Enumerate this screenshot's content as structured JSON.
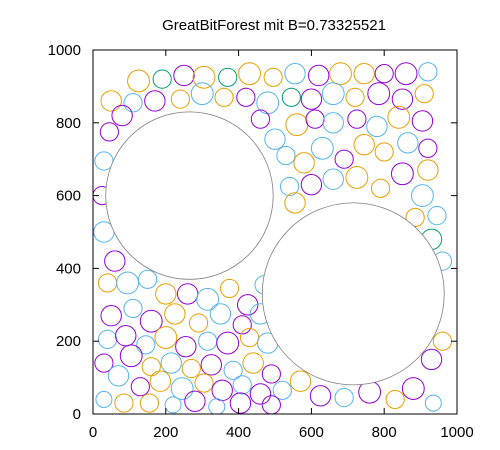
{
  "chart_data": {
    "type": "scatter",
    "title": "GreatBitForest mit B=0.73325521",
    "xlabel": "",
    "ylabel": "",
    "xlim": [
      0,
      1000
    ],
    "ylim": [
      0,
      1000
    ],
    "x_ticks": [
      "0",
      "200",
      "400",
      "600",
      "800",
      "1000"
    ],
    "y_ticks": [
      "0",
      "200",
      "400",
      "600",
      "800",
      "1000"
    ],
    "grid": false,
    "legend": "none",
    "marker": "circle",
    "colors": {
      "purple": "#9400d3",
      "teal": "#009e73",
      "sky": "#56b4e9",
      "orange": "#e69f00",
      "black": "#000000",
      "large_circle": "#808080"
    },
    "large_circles": [
      {
        "x": 265,
        "y": 600,
        "r": 230
      },
      {
        "x": 715,
        "y": 330,
        "r": 250
      }
    ],
    "circles": [
      {
        "x": 125,
        "y": 915,
        "r": 30,
        "color": "orange"
      },
      {
        "x": 190,
        "y": 920,
        "r": 25,
        "color": "teal"
      },
      {
        "x": 250,
        "y": 930,
        "r": 28,
        "color": "purple"
      },
      {
        "x": 305,
        "y": 925,
        "r": 30,
        "color": "orange"
      },
      {
        "x": 370,
        "y": 925,
        "r": 25,
        "color": "teal"
      },
      {
        "x": 430,
        "y": 935,
        "r": 30,
        "color": "orange"
      },
      {
        "x": 495,
        "y": 925,
        "r": 25,
        "color": "orange"
      },
      {
        "x": 555,
        "y": 935,
        "r": 28,
        "color": "sky"
      },
      {
        "x": 620,
        "y": 930,
        "r": 28,
        "color": "purple"
      },
      {
        "x": 680,
        "y": 935,
        "r": 30,
        "color": "orange"
      },
      {
        "x": 745,
        "y": 935,
        "r": 28,
        "color": "orange"
      },
      {
        "x": 800,
        "y": 935,
        "r": 25,
        "color": "purple"
      },
      {
        "x": 860,
        "y": 935,
        "r": 30,
        "color": "purple"
      },
      {
        "x": 920,
        "y": 940,
        "r": 25,
        "color": "sky"
      },
      {
        "x": 50,
        "y": 860,
        "r": 28,
        "color": "orange"
      },
      {
        "x": 110,
        "y": 855,
        "r": 25,
        "color": "sky"
      },
      {
        "x": 170,
        "y": 860,
        "r": 28,
        "color": "purple"
      },
      {
        "x": 240,
        "y": 865,
        "r": 25,
        "color": "orange"
      },
      {
        "x": 300,
        "y": 880,
        "r": 30,
        "color": "sky"
      },
      {
        "x": 360,
        "y": 870,
        "r": 25,
        "color": "orange"
      },
      {
        "x": 420,
        "y": 870,
        "r": 25,
        "color": "purple"
      },
      {
        "x": 480,
        "y": 855,
        "r": 30,
        "color": "sky"
      },
      {
        "x": 545,
        "y": 870,
        "r": 25,
        "color": "teal"
      },
      {
        "x": 600,
        "y": 865,
        "r": 28,
        "color": "purple"
      },
      {
        "x": 660,
        "y": 880,
        "r": 30,
        "color": "sky"
      },
      {
        "x": 720,
        "y": 870,
        "r": 25,
        "color": "orange"
      },
      {
        "x": 785,
        "y": 880,
        "r": 30,
        "color": "purple"
      },
      {
        "x": 850,
        "y": 865,
        "r": 28,
        "color": "purple"
      },
      {
        "x": 910,
        "y": 880,
        "r": 25,
        "color": "orange"
      },
      {
        "x": 45,
        "y": 775,
        "r": 25,
        "color": "purple"
      },
      {
        "x": 80,
        "y": 820,
        "r": 28,
        "color": "purple"
      },
      {
        "x": 460,
        "y": 810,
        "r": 25,
        "color": "purple"
      },
      {
        "x": 500,
        "y": 755,
        "r": 28,
        "color": "sky"
      },
      {
        "x": 560,
        "y": 795,
        "r": 30,
        "color": "orange"
      },
      {
        "x": 610,
        "y": 810,
        "r": 25,
        "color": "purple"
      },
      {
        "x": 660,
        "y": 800,
        "r": 28,
        "color": "sky"
      },
      {
        "x": 725,
        "y": 810,
        "r": 25,
        "color": "purple"
      },
      {
        "x": 780,
        "y": 790,
        "r": 28,
        "color": "sky"
      },
      {
        "x": 840,
        "y": 815,
        "r": 30,
        "color": "orange"
      },
      {
        "x": 905,
        "y": 805,
        "r": 28,
        "color": "purple"
      },
      {
        "x": 530,
        "y": 710,
        "r": 25,
        "color": "sky"
      },
      {
        "x": 580,
        "y": 690,
        "r": 28,
        "color": "orange"
      },
      {
        "x": 630,
        "y": 730,
        "r": 30,
        "color": "sky"
      },
      {
        "x": 690,
        "y": 700,
        "r": 25,
        "color": "purple"
      },
      {
        "x": 745,
        "y": 740,
        "r": 28,
        "color": "orange"
      },
      {
        "x": 800,
        "y": 720,
        "r": 25,
        "color": "orange"
      },
      {
        "x": 865,
        "y": 745,
        "r": 28,
        "color": "sky"
      },
      {
        "x": 920,
        "y": 730,
        "r": 25,
        "color": "purple"
      },
      {
        "x": 540,
        "y": 625,
        "r": 25,
        "color": "sky"
      },
      {
        "x": 600,
        "y": 630,
        "r": 28,
        "color": "purple"
      },
      {
        "x": 660,
        "y": 645,
        "r": 28,
        "color": "sky"
      },
      {
        "x": 725,
        "y": 650,
        "r": 30,
        "color": "orange"
      },
      {
        "x": 790,
        "y": 620,
        "r": 25,
        "color": "orange"
      },
      {
        "x": 850,
        "y": 660,
        "r": 30,
        "color": "purple"
      },
      {
        "x": 920,
        "y": 670,
        "r": 28,
        "color": "orange"
      },
      {
        "x": 555,
        "y": 580,
        "r": 28,
        "color": "orange"
      },
      {
        "x": 905,
        "y": 600,
        "r": 30,
        "color": "sky"
      },
      {
        "x": 945,
        "y": 545,
        "r": 25,
        "color": "sky"
      },
      {
        "x": 885,
        "y": 540,
        "r": 25,
        "color": "orange"
      },
      {
        "x": 930,
        "y": 480,
        "r": 28,
        "color": "teal"
      },
      {
        "x": 30,
        "y": 695,
        "r": 25,
        "color": "sky"
      },
      {
        "x": 25,
        "y": 600,
        "r": 25,
        "color": "purple"
      },
      {
        "x": 30,
        "y": 500,
        "r": 28,
        "color": "sky"
      },
      {
        "x": 60,
        "y": 420,
        "r": 28,
        "color": "purple"
      },
      {
        "x": 40,
        "y": 360,
        "r": 25,
        "color": "orange"
      },
      {
        "x": 95,
        "y": 360,
        "r": 30,
        "color": "sky"
      },
      {
        "x": 150,
        "y": 370,
        "r": 25,
        "color": "sky"
      },
      {
        "x": 200,
        "y": 330,
        "r": 28,
        "color": "orange"
      },
      {
        "x": 260,
        "y": 330,
        "r": 28,
        "color": "purple"
      },
      {
        "x": 315,
        "y": 315,
        "r": 30,
        "color": "sky"
      },
      {
        "x": 375,
        "y": 345,
        "r": 25,
        "color": "orange"
      },
      {
        "x": 425,
        "y": 300,
        "r": 28,
        "color": "purple"
      },
      {
        "x": 470,
        "y": 355,
        "r": 25,
        "color": "sky"
      },
      {
        "x": 50,
        "y": 270,
        "r": 28,
        "color": "purple"
      },
      {
        "x": 110,
        "y": 290,
        "r": 25,
        "color": "sky"
      },
      {
        "x": 160,
        "y": 255,
        "r": 30,
        "color": "purple"
      },
      {
        "x": 225,
        "y": 275,
        "r": 28,
        "color": "orange"
      },
      {
        "x": 290,
        "y": 250,
        "r": 25,
        "color": "orange"
      },
      {
        "x": 350,
        "y": 275,
        "r": 28,
        "color": "sky"
      },
      {
        "x": 410,
        "y": 245,
        "r": 25,
        "color": "purple"
      },
      {
        "x": 460,
        "y": 275,
        "r": 28,
        "color": "sky"
      },
      {
        "x": 40,
        "y": 205,
        "r": 25,
        "color": "sky"
      },
      {
        "x": 90,
        "y": 215,
        "r": 28,
        "color": "purple"
      },
      {
        "x": 145,
        "y": 190,
        "r": 25,
        "color": "sky"
      },
      {
        "x": 200,
        "y": 210,
        "r": 30,
        "color": "orange"
      },
      {
        "x": 255,
        "y": 185,
        "r": 28,
        "color": "purple"
      },
      {
        "x": 315,
        "y": 200,
        "r": 25,
        "color": "sky"
      },
      {
        "x": 370,
        "y": 195,
        "r": 30,
        "color": "purple"
      },
      {
        "x": 430,
        "y": 210,
        "r": 25,
        "color": "orange"
      },
      {
        "x": 480,
        "y": 195,
        "r": 28,
        "color": "sky"
      },
      {
        "x": 30,
        "y": 140,
        "r": 25,
        "color": "purple"
      },
      {
        "x": 105,
        "y": 160,
        "r": 30,
        "color": "purple"
      },
      {
        "x": 160,
        "y": 130,
        "r": 25,
        "color": "orange"
      },
      {
        "x": 215,
        "y": 140,
        "r": 28,
        "color": "sky"
      },
      {
        "x": 270,
        "y": 125,
        "r": 25,
        "color": "orange"
      },
      {
        "x": 325,
        "y": 135,
        "r": 28,
        "color": "purple"
      },
      {
        "x": 385,
        "y": 120,
        "r": 25,
        "color": "sky"
      },
      {
        "x": 440,
        "y": 140,
        "r": 28,
        "color": "orange"
      },
      {
        "x": 490,
        "y": 110,
        "r": 25,
        "color": "purple"
      },
      {
        "x": 70,
        "y": 105,
        "r": 28,
        "color": "sky"
      },
      {
        "x": 130,
        "y": 75,
        "r": 25,
        "color": "purple"
      },
      {
        "x": 185,
        "y": 90,
        "r": 28,
        "color": "orange"
      },
      {
        "x": 245,
        "y": 70,
        "r": 30,
        "color": "sky"
      },
      {
        "x": 305,
        "y": 85,
        "r": 25,
        "color": "orange"
      },
      {
        "x": 355,
        "y": 65,
        "r": 28,
        "color": "purple"
      },
      {
        "x": 410,
        "y": 80,
        "r": 25,
        "color": "sky"
      },
      {
        "x": 460,
        "y": 55,
        "r": 28,
        "color": "purple"
      },
      {
        "x": 520,
        "y": 65,
        "r": 25,
        "color": "sky"
      },
      {
        "x": 570,
        "y": 90,
        "r": 28,
        "color": "orange"
      },
      {
        "x": 30,
        "y": 40,
        "r": 22,
        "color": "sky"
      },
      {
        "x": 85,
        "y": 30,
        "r": 25,
        "color": "orange"
      },
      {
        "x": 155,
        "y": 30,
        "r": 25,
        "color": "orange"
      },
      {
        "x": 220,
        "y": 25,
        "r": 22,
        "color": "sky"
      },
      {
        "x": 280,
        "y": 35,
        "r": 28,
        "color": "purple"
      },
      {
        "x": 340,
        "y": 20,
        "r": 22,
        "color": "sky"
      },
      {
        "x": 405,
        "y": 30,
        "r": 28,
        "color": "purple"
      },
      {
        "x": 490,
        "y": 25,
        "r": 25,
        "color": "purple"
      },
      {
        "x": 625,
        "y": 50,
        "r": 28,
        "color": "purple"
      },
      {
        "x": 690,
        "y": 45,
        "r": 25,
        "color": "sky"
      },
      {
        "x": 760,
        "y": 60,
        "r": 30,
        "color": "purple"
      },
      {
        "x": 830,
        "y": 40,
        "r": 25,
        "color": "orange"
      },
      {
        "x": 880,
        "y": 70,
        "r": 30,
        "color": "purple"
      },
      {
        "x": 935,
        "y": 30,
        "r": 22,
        "color": "sky"
      },
      {
        "x": 930,
        "y": 150,
        "r": 28,
        "color": "purple"
      },
      {
        "x": 960,
        "y": 200,
        "r": 25,
        "color": "orange"
      },
      {
        "x": 960,
        "y": 420,
        "r": 25,
        "color": "sky"
      }
    ]
  }
}
